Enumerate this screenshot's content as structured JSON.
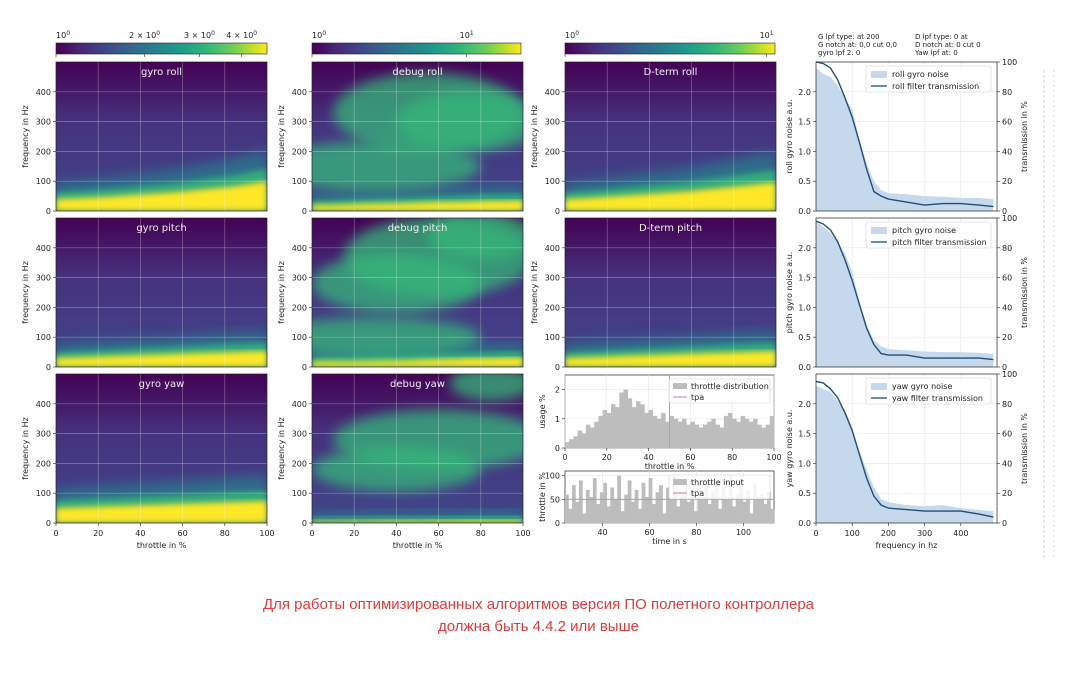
{
  "colors": {
    "viridis": [
      "#440154",
      "#482878",
      "#3e4989",
      "#31688e",
      "#26828e",
      "#1f9e89",
      "#35b779",
      "#6ece58",
      "#b5de2b",
      "#fde725"
    ],
    "noise_fill": "#c6d9ec",
    "transmission": "#1f4e79",
    "hist": "#bdbdbd",
    "tpa": "#d98b9a",
    "caption": "#e03a3a",
    "watermark": "#c8c8c8"
  },
  "colorbars": [
    {
      "ticks": [
        {
          "label": "10",
          "sup": "0",
          "pos": 0.0
        },
        {
          "label": "2 × 10",
          "sup": "0",
          "pos": 0.42
        },
        {
          "label": "3 × 10",
          "sup": "0",
          "pos": 0.68
        },
        {
          "label": "4 × 10",
          "sup": "0",
          "pos": 0.88
        }
      ]
    },
    {
      "ticks": [
        {
          "label": "10",
          "sup": "0",
          "pos": 0.0
        },
        {
          "label": "10",
          "sup": "1",
          "pos": 0.74
        }
      ]
    },
    {
      "ticks": [
        {
          "label": "10",
          "sup": "0",
          "pos": 0.0
        },
        {
          "label": "10",
          "sup": "1",
          "pos": 0.96
        }
      ]
    }
  ],
  "chart_data": [
    {
      "type": "heatmap",
      "title": "gyro roll",
      "xlabel": "",
      "ylabel": "frequency in Hz",
      "xlim": [
        0,
        100
      ],
      "ylim": [
        0,
        500
      ],
      "yticks": [
        0,
        100,
        200,
        300,
        400
      ],
      "xticks": [],
      "band_hz": [
        40,
        42,
        45,
        48,
        52,
        56,
        60,
        64,
        70,
        76,
        82,
        90,
        100
      ]
    },
    {
      "type": "heatmap",
      "title": "debug roll",
      "xlabel": "",
      "ylabel": "frequency in Hz",
      "xlim": [
        0,
        100
      ],
      "ylim": [
        0,
        500
      ],
      "yticks": [
        0,
        100,
        200,
        300,
        400
      ],
      "xticks": [],
      "band_hz": [
        20,
        20,
        22,
        24,
        25,
        26,
        28,
        30,
        30,
        32,
        34,
        34,
        36
      ]
    },
    {
      "type": "heatmap",
      "title": "D-term roll",
      "xlabel": "",
      "ylabel": "frequency in Hz",
      "xlim": [
        0,
        100
      ],
      "ylim": [
        0,
        500
      ],
      "yticks": [
        0,
        100,
        200,
        300,
        400
      ],
      "xticks": [],
      "band_hz": [
        40,
        42,
        46,
        50,
        54,
        58,
        62,
        66,
        72,
        78,
        84,
        90,
        96
      ]
    },
    {
      "type": "heatmap",
      "title": "gyro pitch",
      "xlabel": "",
      "ylabel": "frequency in Hz",
      "xlim": [
        0,
        100
      ],
      "ylim": [
        0,
        500
      ],
      "yticks": [
        0,
        100,
        200,
        300,
        400
      ],
      "xticks": [],
      "band_hz": [
        30,
        32,
        34,
        36,
        38,
        40,
        42,
        44,
        46,
        48,
        50,
        52,
        54
      ]
    },
    {
      "type": "heatmap",
      "title": "debug pitch",
      "xlabel": "",
      "ylabel": "frequency in Hz",
      "xlim": [
        0,
        100
      ],
      "ylim": [
        0,
        500
      ],
      "yticks": [
        0,
        100,
        200,
        300,
        400
      ],
      "xticks": [],
      "band_hz": [
        18,
        20,
        20,
        22,
        24,
        24,
        26,
        28,
        28,
        30,
        30,
        32,
        32
      ]
    },
    {
      "type": "heatmap",
      "title": "D-term pitch",
      "xlabel": "",
      "ylabel": "frequency in Hz",
      "xlim": [
        0,
        100
      ],
      "ylim": [
        0,
        500
      ],
      "yticks": [
        0,
        100,
        200,
        300,
        400
      ],
      "xticks": [],
      "band_hz": [
        30,
        32,
        34,
        36,
        38,
        40,
        42,
        44,
        46,
        48,
        50,
        52,
        54
      ]
    },
    {
      "type": "heatmap",
      "title": "gyro yaw",
      "xlabel": "throttle in %",
      "ylabel": "frequency in Hz",
      "xlim": [
        0,
        100
      ],
      "ylim": [
        0,
        500
      ],
      "yticks": [
        0,
        100,
        200,
        300,
        400
      ],
      "xticks": [
        0,
        20,
        40,
        60,
        80,
        100
      ],
      "band_hz": [
        50,
        52,
        54,
        56,
        58,
        60,
        62,
        64,
        66,
        68,
        70,
        72,
        74
      ]
    },
    {
      "type": "heatmap",
      "title": "debug yaw",
      "xlabel": "throttle in %",
      "ylabel": "frequency in Hz",
      "xlim": [
        0,
        100
      ],
      "ylim": [
        0,
        500
      ],
      "yticks": [
        0,
        100,
        200,
        300,
        400
      ],
      "xticks": [
        0,
        20,
        40,
        60,
        80,
        100
      ],
      "band_hz": [
        8,
        8,
        9,
        9,
        10,
        10,
        10,
        11,
        11,
        12,
        12,
        12,
        12
      ]
    },
    {
      "type": "bar",
      "title": "",
      "xlabel": "throttle in %",
      "ylabel": "usage %",
      "xlim": [
        0,
        100
      ],
      "ylim": [
        0,
        2.5
      ],
      "yticks": [
        0,
        1,
        2
      ],
      "xticks": [
        0,
        20,
        40,
        60,
        80,
        100
      ],
      "legend": [
        "throttle distribution",
        "tpa"
      ],
      "tpa_x": 50,
      "values": [
        0.2,
        0.3,
        0.4,
        0.6,
        0.5,
        0.8,
        0.7,
        0.9,
        1.1,
        1.3,
        1.2,
        1.5,
        1.4,
        1.9,
        2.0,
        1.7,
        1.4,
        1.6,
        1.5,
        1.2,
        1.3,
        1.1,
        1.0,
        1.2,
        0.9,
        1.1,
        1.0,
        0.9,
        1.0,
        0.8,
        0.9,
        0.8,
        0.7,
        0.8,
        0.9,
        1.0,
        0.8,
        0.7,
        1.1,
        1.2,
        1.0,
        0.9,
        1.1,
        1.0,
        0.9,
        1.0,
        0.8,
        0.7,
        0.8,
        1.1
      ]
    },
    {
      "type": "bar",
      "title": "",
      "xlabel": "time in s",
      "ylabel": "throttle in %",
      "xlim": [
        24,
        113
      ],
      "ylim": [
        0,
        110
      ],
      "yticks": [
        0,
        50,
        100
      ],
      "xticks": [
        40,
        60,
        80,
        100
      ],
      "legend": [
        "throttle input",
        "tpa"
      ],
      "tpa_y": 50,
      "values": [
        60,
        30,
        80,
        45,
        90,
        20,
        70,
        55,
        95,
        40,
        65,
        85,
        35,
        75,
        50,
        100,
        25,
        60,
        90,
        45,
        70,
        30,
        85,
        55,
        95,
        40,
        65,
        80,
        20,
        75,
        50,
        100,
        35,
        60,
        90,
        45,
        70,
        25,
        85,
        55,
        95,
        40,
        65,
        80,
        30,
        75,
        50,
        100,
        35,
        60,
        90,
        45,
        70,
        20,
        85,
        55,
        60,
        40,
        65,
        30
      ]
    },
    {
      "type": "area",
      "title": "",
      "xlabel": "",
      "ylabel": "roll gyro noise a.u.",
      "y2label": "transmission in %",
      "xlim": [
        0,
        500
      ],
      "ylim": [
        0,
        2.5
      ],
      "y2lim": [
        0,
        100
      ],
      "yticks": [
        0.0,
        0.5,
        1.0,
        1.5,
        2.0
      ],
      "y2ticks": [
        0,
        20,
        40,
        60,
        80,
        100
      ],
      "xticks": [],
      "legend": [
        "roll gyro noise",
        "roll filter transmission"
      ],
      "x": [
        0,
        20,
        40,
        60,
        80,
        100,
        120,
        140,
        160,
        180,
        200,
        250,
        300,
        350,
        400,
        450,
        490
      ],
      "noise": [
        2.4,
        2.3,
        2.25,
        2.1,
        1.9,
        1.7,
        1.2,
        0.8,
        0.5,
        0.35,
        0.3,
        0.28,
        0.25,
        0.24,
        0.22,
        0.22,
        0.2
      ],
      "transmission": [
        100,
        99,
        96,
        88,
        76,
        63,
        46,
        28,
        13,
        10,
        8,
        6,
        4,
        5,
        5,
        4,
        3
      ]
    },
    {
      "type": "area",
      "title": "",
      "xlabel": "",
      "ylabel": "pitch gyro noise a.u.",
      "y2label": "transmission in %",
      "xlim": [
        0,
        500
      ],
      "ylim": [
        0,
        2.5
      ],
      "y2lim": [
        0,
        100
      ],
      "yticks": [
        0.0,
        0.5,
        1.0,
        1.5,
        2.0
      ],
      "y2ticks": [
        0,
        20,
        40,
        60,
        80,
        100
      ],
      "xticks": [],
      "legend": [
        "pitch gyro noise",
        "pitch filter transmission"
      ],
      "x": [
        0,
        20,
        40,
        60,
        80,
        100,
        120,
        140,
        160,
        180,
        200,
        250,
        300,
        350,
        400,
        450,
        490
      ],
      "noise": [
        2.45,
        2.35,
        2.25,
        2.1,
        1.9,
        1.6,
        1.1,
        0.7,
        0.45,
        0.35,
        0.3,
        0.28,
        0.26,
        0.25,
        0.25,
        0.24,
        0.22
      ],
      "transmission": [
        98,
        96,
        92,
        84,
        72,
        58,
        42,
        26,
        15,
        9,
        8,
        8,
        6,
        6,
        6,
        6,
        5
      ]
    },
    {
      "type": "area",
      "title": "",
      "xlabel": "frequency in hz",
      "ylabel": "yaw gyro noise a.u.",
      "y2label": "transmission in %",
      "xlim": [
        0,
        500
      ],
      "ylim": [
        0,
        2.5
      ],
      "y2lim": [
        0,
        100
      ],
      "yticks": [
        0.0,
        0.5,
        1.0,
        1.5,
        2.0
      ],
      "y2ticks": [
        0,
        20,
        40,
        60,
        80,
        100
      ],
      "xticks": [
        0,
        100,
        200,
        300,
        400
      ],
      "legend": [
        "yaw gyro noise",
        "yaw filter transmission"
      ],
      "x": [
        0,
        20,
        40,
        60,
        80,
        100,
        120,
        140,
        160,
        180,
        200,
        250,
        300,
        350,
        400,
        450,
        490
      ],
      "noise": [
        2.3,
        2.25,
        2.2,
        2.05,
        1.9,
        1.6,
        1.2,
        0.9,
        0.6,
        0.4,
        0.35,
        0.3,
        0.28,
        0.3,
        0.25,
        0.22,
        0.2
      ],
      "transmission": [
        95,
        94,
        90,
        84,
        74,
        62,
        46,
        30,
        18,
        12,
        10,
        9,
        8,
        8,
        8,
        6,
        4
      ]
    }
  ],
  "filter_info": {
    "left": [
      "G lpf type:  at 200",
      "G notch at: 0,0 cut 0,0",
      "gyro lpf 2:  0"
    ],
    "right": [
      "D lpf type:  0 at",
      "D notch at: 0 cut 0",
      "Yaw lpf at: 0"
    ]
  },
  "caption": {
    "line1": "Для работы оптимизированных алгоритмов версия ПО полетного контроллера",
    "line2": "должна быть 4.4.2 или выше"
  }
}
